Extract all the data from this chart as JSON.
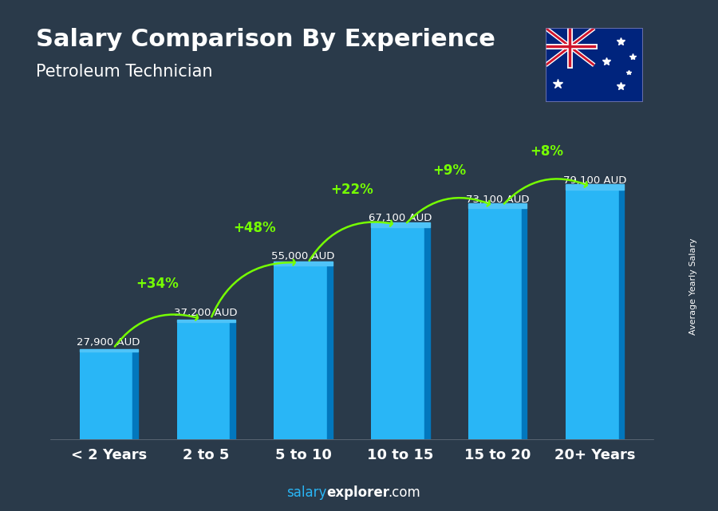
{
  "title": "Salary Comparison By Experience",
  "subtitle": "Petroleum Technician",
  "categories": [
    "< 2 Years",
    "2 to 5",
    "5 to 10",
    "10 to 15",
    "15 to 20",
    "20+ Years"
  ],
  "values": [
    27900,
    37200,
    55000,
    67100,
    73100,
    79100
  ],
  "salary_labels": [
    "27,900 AUD",
    "37,200 AUD",
    "55,000 AUD",
    "67,100 AUD",
    "73,100 AUD",
    "79,100 AUD"
  ],
  "pct_changes": [
    "+34%",
    "+48%",
    "+22%",
    "+9%",
    "+8%"
  ],
  "bar_color": "#29B6F6",
  "bar_color_dark": "#0277BD",
  "bar_color_light": "#4FC3F7",
  "pct_color": "#76FF03",
  "title_color": "#FFFFFF",
  "subtitle_color": "#FFFFFF",
  "ylabel_text": "Average Yearly Salary",
  "footer_salary": "salary",
  "footer_explorer": "explorer",
  "footer_com": ".com",
  "ylim": [
    0,
    97000
  ],
  "bg_color": "#2a3a4a"
}
